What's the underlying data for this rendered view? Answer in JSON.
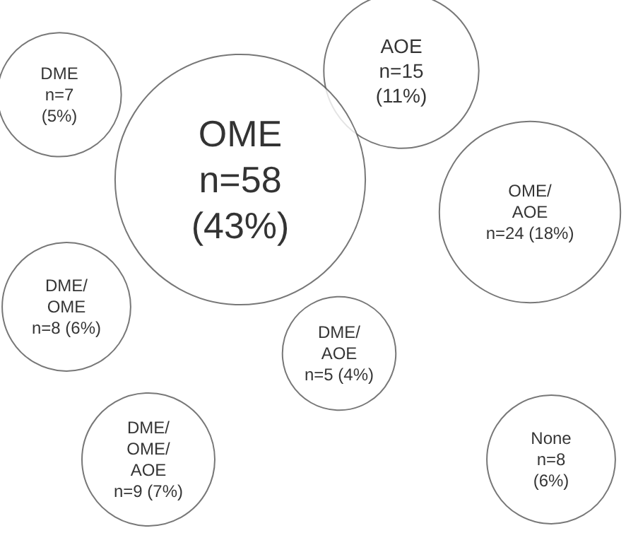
{
  "chart_data": {
    "type": "other",
    "categories": [
      "DME",
      "AOE",
      "OME",
      "OME/AOE",
      "DME/OME",
      "DME/AOE",
      "DME/OME/AOE",
      "None"
    ],
    "values": [
      7,
      15,
      58,
      24,
      8,
      5,
      9,
      8
    ],
    "value_labels": [
      "n=7 (5%)",
      "n=15 (11%)",
      "n=58 (43%)",
      "n=24 (18%)",
      "n=8 (6%)",
      "n=5 (4%)",
      "n=9 (7%)",
      "n=8 (6%)"
    ],
    "color": "#ffffff"
  }
}
